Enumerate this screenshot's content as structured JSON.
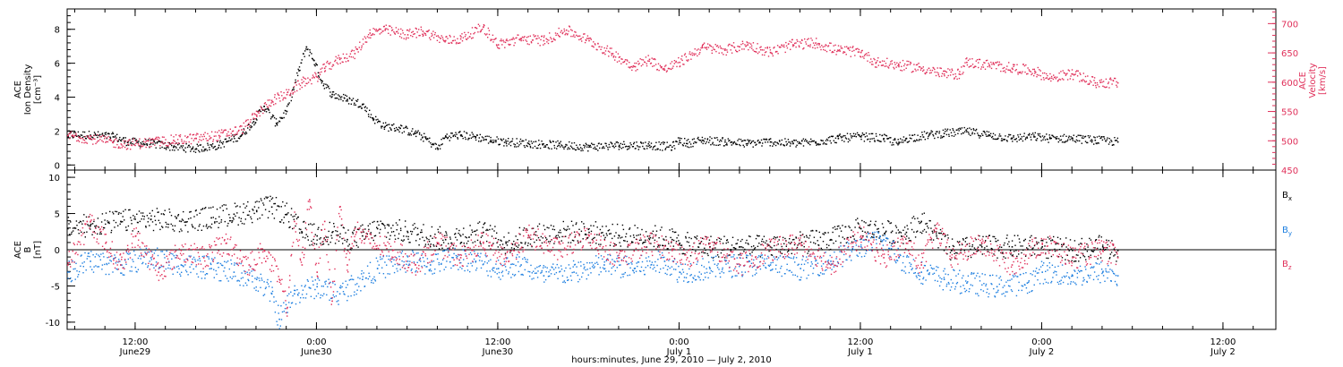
{
  "chart_data": [
    {
      "type": "scatter",
      "panel": "top",
      "title": "",
      "xlabel": "hours:minutes, June 29, 2010 — July 2, 2010",
      "x_ticks": [
        {
          "t": 12,
          "time": "12:00",
          "date": "June29"
        },
        {
          "t": 24,
          "time": "0:00",
          "date": "June30"
        },
        {
          "t": 36,
          "time": "12:00",
          "date": "June30"
        },
        {
          "t": 48,
          "time": "0:00",
          "date": "July 1"
        },
        {
          "t": 60,
          "time": "12:00",
          "date": "July 1"
        },
        {
          "t": 72,
          "time": "0:00",
          "date": "July 2"
        },
        {
          "t": 84,
          "time": "12:00",
          "date": "July 2"
        }
      ],
      "x_unit": "hours after 0:00 June 29, 2010",
      "xlim": [
        7.5,
        87.5
      ],
      "left_axis": {
        "label_lines": [
          "ACE",
          "Ion Density",
          "[cm⁻³]"
        ],
        "ylim": [
          -0.3,
          9.2
        ],
        "ticks": [
          0,
          2,
          4,
          6,
          8
        ],
        "color": "#000000"
      },
      "right_axis": {
        "label_lines": [
          "ACE",
          "Velocity",
          "[km/s]"
        ],
        "ylim": [
          450,
          725
        ],
        "ticks": [
          450,
          500,
          550,
          600,
          650,
          700
        ],
        "color": "#e0305a"
      },
      "series": [
        {
          "name": "Ion Density",
          "axis": "left",
          "color": "#000000",
          "points": [
            [
              7.5,
              1.8
            ],
            [
              9,
              1.8
            ],
            [
              10.5,
              1.7
            ],
            [
              11.5,
              1.4
            ],
            [
              13,
              1.3
            ],
            [
              14.5,
              1.1
            ],
            [
              16,
              1.0
            ],
            [
              17.5,
              1.2
            ],
            [
              19,
              1.8
            ],
            [
              19.8,
              2.6
            ],
            [
              20.5,
              3.5
            ],
            [
              21.3,
              2.5
            ],
            [
              22,
              3.2
            ],
            [
              22.8,
              5.6
            ],
            [
              23.3,
              7.0
            ],
            [
              23.8,
              6.2
            ],
            [
              24.3,
              5.0
            ],
            [
              25,
              4.2
            ],
            [
              26,
              3.9
            ],
            [
              27,
              3.6
            ],
            [
              27.7,
              2.8
            ],
            [
              28.5,
              2.3
            ],
            [
              29.5,
              2.2
            ],
            [
              30.5,
              1.9
            ],
            [
              31.2,
              1.6
            ],
            [
              32,
              1.0
            ],
            [
              32.5,
              1.7
            ],
            [
              33.5,
              1.8
            ],
            [
              34.5,
              1.7
            ],
            [
              35.5,
              1.5
            ],
            [
              36.5,
              1.4
            ],
            [
              38,
              1.3
            ],
            [
              40,
              1.2
            ],
            [
              42,
              1.1
            ],
            [
              44,
              1.2
            ],
            [
              46,
              1.2
            ],
            [
              47.5,
              1.1
            ],
            [
              48,
              1.5
            ],
            [
              48.5,
              1.3
            ],
            [
              49.5,
              1.5
            ],
            [
              51,
              1.4
            ],
            [
              52.5,
              1.3
            ],
            [
              54,
              1.4
            ],
            [
              55.5,
              1.3
            ],
            [
              57,
              1.4
            ],
            [
              58.5,
              1.6
            ],
            [
              60,
              1.7
            ],
            [
              61.5,
              1.6
            ],
            [
              62.5,
              1.3
            ],
            [
              63,
              1.6
            ],
            [
              64.5,
              1.8
            ],
            [
              65.5,
              1.9
            ],
            [
              67,
              2.0
            ],
            [
              68.5,
              1.8
            ],
            [
              70,
              1.6
            ],
            [
              71.5,
              1.7
            ],
            [
              72.5,
              1.6
            ],
            [
              74,
              1.6
            ],
            [
              75.5,
              1.5
            ],
            [
              77,
              1.4
            ]
          ]
        },
        {
          "name": "Velocity",
          "axis": "right",
          "color": "#e0305a",
          "points": [
            [
              7.5,
              510
            ],
            [
              9,
              505
            ],
            [
              10.5,
              498
            ],
            [
              11.5,
              495
            ],
            [
              13,
              498
            ],
            [
              14.5,
              502
            ],
            [
              16,
              505
            ],
            [
              17.5,
              510
            ],
            [
              19,
              520
            ],
            [
              20,
              545
            ],
            [
              21,
              570
            ],
            [
              22,
              580
            ],
            [
              23,
              600
            ],
            [
              24,
              610
            ],
            [
              24.5,
              625
            ],
            [
              25.5,
              640
            ],
            [
              26.5,
              650
            ],
            [
              27.5,
              685
            ],
            [
              28.5,
              690
            ],
            [
              30,
              682
            ],
            [
              31,
              688
            ],
            [
              32.5,
              672
            ],
            [
              33.5,
              675
            ],
            [
              35,
              695
            ],
            [
              36,
              665
            ],
            [
              37.5,
              675
            ],
            [
              39,
              672
            ],
            [
              40.5,
              690
            ],
            [
              42,
              672
            ],
            [
              43.5,
              650
            ],
            [
              45,
              628
            ],
            [
              46,
              640
            ],
            [
              47,
              622
            ],
            [
              48,
              635
            ],
            [
              49.5,
              660
            ],
            [
              51,
              656
            ],
            [
              52.5,
              665
            ],
            [
              54,
              652
            ],
            [
              55.5,
              665
            ],
            [
              57,
              668
            ],
            [
              58.5,
              655
            ],
            [
              60,
              652
            ],
            [
              61,
              635
            ],
            [
              62.5,
              630
            ],
            [
              64,
              625
            ],
            [
              65.5,
              615
            ],
            [
              66.5,
              615
            ],
            [
              67,
              635
            ],
            [
              68.5,
              630
            ],
            [
              70,
              625
            ],
            [
              71.5,
              620
            ],
            [
              72.5,
              608
            ],
            [
              74,
              615
            ],
            [
              75.5,
              600
            ],
            [
              77,
              600
            ]
          ]
        }
      ]
    },
    {
      "type": "scatter",
      "panel": "bottom",
      "title": "",
      "x_unit": "hours after 0:00 June 29, 2010",
      "xlim": [
        7.5,
        87.5
      ],
      "left_axis": {
        "label_lines": [
          "ACE",
          "B",
          "[nT]"
        ],
        "ylim": [
          -11,
          11
        ],
        "ticks": [
          -10,
          -5,
          0,
          5,
          10
        ],
        "zero_line": true,
        "color": "#000000"
      },
      "series": [
        {
          "name": "Bx",
          "name_main": "B",
          "name_sub": "x",
          "color": "#000000",
          "points": [
            [
              7.5,
              3
            ],
            [
              9,
              3.5
            ],
            [
              11,
              4
            ],
            [
              13,
              4.3
            ],
            [
              15,
              4
            ],
            [
              17,
              4.5
            ],
            [
              18.5,
              5
            ],
            [
              20,
              5.5
            ],
            [
              21,
              6
            ],
            [
              22,
              5
            ],
            [
              23,
              2.5
            ],
            [
              24,
              2
            ],
            [
              25,
              2.5
            ],
            [
              26,
              1.5
            ],
            [
              27,
              2
            ],
            [
              28,
              3
            ],
            [
              30,
              2.5
            ],
            [
              31.5,
              2
            ],
            [
              32.5,
              1.5
            ],
            [
              33.5,
              2
            ],
            [
              35,
              2.5
            ],
            [
              36.5,
              1
            ],
            [
              38,
              2
            ],
            [
              40,
              2.5
            ],
            [
              42,
              2.5
            ],
            [
              44,
              2
            ],
            [
              46,
              2
            ],
            [
              47.5,
              1.5
            ],
            [
              48,
              1
            ],
            [
              50,
              0.5
            ],
            [
              52,
              0.5
            ],
            [
              54,
              0.5
            ],
            [
              56,
              1
            ],
            [
              58,
              1.5
            ],
            [
              60,
              3
            ],
            [
              62,
              2.5
            ],
            [
              63,
              2.5
            ],
            [
              64,
              4
            ],
            [
              65,
              2
            ],
            [
              66,
              0
            ],
            [
              68,
              0.5
            ],
            [
              70,
              0.5
            ],
            [
              72,
              0.5
            ],
            [
              74,
              0
            ],
            [
              76,
              0.5
            ],
            [
              77,
              0
            ]
          ]
        },
        {
          "name": "By",
          "name_main": "B",
          "name_sub": "y",
          "color": "#1e7fe0",
          "points": [
            [
              7.5,
              -3
            ],
            [
              9,
              -1.5
            ],
            [
              11,
              -2
            ],
            [
              13,
              -1
            ],
            [
              15,
              -2
            ],
            [
              17,
              -2.5
            ],
            [
              18.5,
              -3
            ],
            [
              20,
              -4
            ],
            [
              21,
              -6
            ],
            [
              21.5,
              -9.5
            ],
            [
              22.5,
              -6
            ],
            [
              24,
              -5
            ],
            [
              25.5,
              -6
            ],
            [
              27,
              -4
            ],
            [
              28,
              -2.5
            ],
            [
              30,
              -1.5
            ],
            [
              31.5,
              -2
            ],
            [
              33,
              -1
            ],
            [
              34.5,
              -1.5
            ],
            [
              36,
              -2.5
            ],
            [
              37.5,
              -2
            ],
            [
              39,
              -3.5
            ],
            [
              41,
              -3
            ],
            [
              43,
              -2
            ],
            [
              45,
              -2.5
            ],
            [
              47,
              -1.5
            ],
            [
              48,
              -3
            ],
            [
              50,
              -2.5
            ],
            [
              52,
              -2
            ],
            [
              54,
              -2
            ],
            [
              56,
              -2.5
            ],
            [
              58,
              -1.5
            ],
            [
              60,
              0.5
            ],
            [
              61.5,
              1.5
            ],
            [
              62.5,
              -1
            ],
            [
              64,
              -3
            ],
            [
              65.5,
              -4
            ],
            [
              67,
              -4.5
            ],
            [
              69,
              -5
            ],
            [
              71,
              -4.5
            ],
            [
              72,
              -3
            ],
            [
              74,
              -3.5
            ],
            [
              76,
              -3
            ],
            [
              77,
              -3.5
            ]
          ]
        },
        {
          "name": "Bz",
          "name_main": "B",
          "name_sub": "z",
          "color": "#e0305a",
          "points": [
            [
              7.5,
              -2
            ],
            [
              9,
              4
            ],
            [
              10,
              1
            ],
            [
              11,
              -2
            ],
            [
              12,
              2
            ],
            [
              13.5,
              -3
            ],
            [
              15,
              0
            ],
            [
              16.5,
              -1
            ],
            [
              18,
              1
            ],
            [
              19.5,
              -2
            ],
            [
              20.5,
              0
            ],
            [
              21.5,
              -4
            ],
            [
              22,
              -8
            ],
            [
              22.5,
              4
            ],
            [
              23,
              -2
            ],
            [
              23.5,
              7
            ],
            [
              24,
              -3
            ],
            [
              24.5,
              4
            ],
            [
              25,
              -7
            ],
            [
              25.5,
              6
            ],
            [
              26,
              -2
            ],
            [
              26.5,
              3
            ],
            [
              27.5,
              1
            ],
            [
              29,
              0
            ],
            [
              30.5,
              -2
            ],
            [
              32,
              1
            ],
            [
              33.5,
              -1
            ],
            [
              35,
              1
            ],
            [
              36.5,
              -1
            ],
            [
              38,
              2
            ],
            [
              40,
              0
            ],
            [
              42,
              2
            ],
            [
              44,
              -1
            ],
            [
              46,
              1
            ],
            [
              47.5,
              0
            ],
            [
              48.5,
              -1
            ],
            [
              50,
              1
            ],
            [
              52,
              -2
            ],
            [
              54,
              0
            ],
            [
              56,
              1
            ],
            [
              58,
              -2
            ],
            [
              60,
              2
            ],
            [
              61.5,
              -1
            ],
            [
              63,
              1
            ],
            [
              64,
              -2
            ],
            [
              65,
              3
            ],
            [
              66,
              -1
            ],
            [
              68,
              1
            ],
            [
              70,
              -2
            ],
            [
              72,
              1
            ],
            [
              74,
              -1
            ],
            [
              76,
              0
            ],
            [
              77,
              -1
            ]
          ]
        }
      ]
    }
  ]
}
